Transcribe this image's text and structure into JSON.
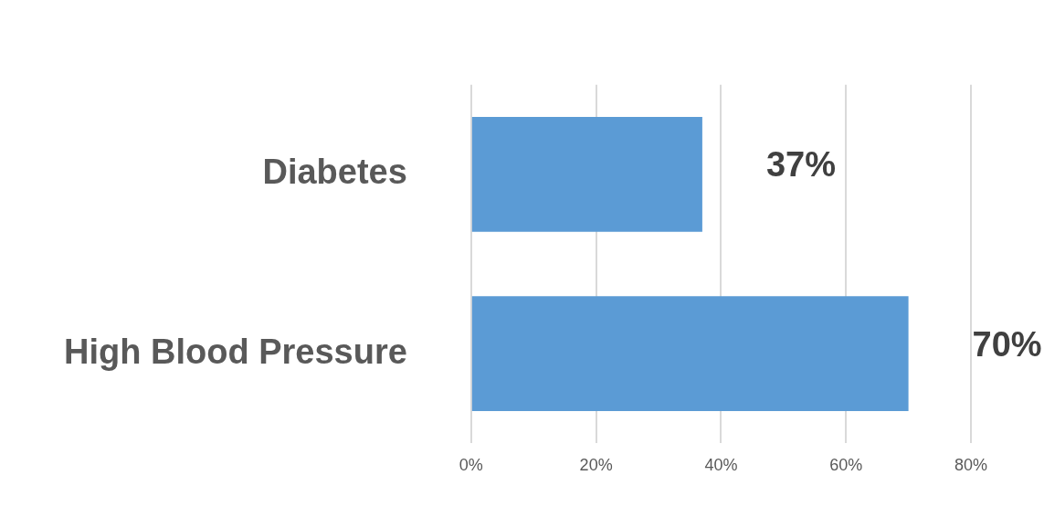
{
  "chart_data": {
    "type": "bar",
    "orientation": "horizontal",
    "categories": [
      "Diabetes",
      "High Blood Pressure"
    ],
    "values": [
      37,
      70
    ],
    "color": "#5b9bd5",
    "value_labels": [
      "37%",
      "70%"
    ],
    "xlim": [
      0,
      80
    ],
    "xticks": [
      {
        "value": 0,
        "label": "0%"
      },
      {
        "value": 20,
        "label": "20%"
      },
      {
        "value": 40,
        "label": "40%"
      },
      {
        "value": 60,
        "label": "60%"
      },
      {
        "value": 80,
        "label": "80%"
      }
    ],
    "grid": "x",
    "legend": false
  }
}
